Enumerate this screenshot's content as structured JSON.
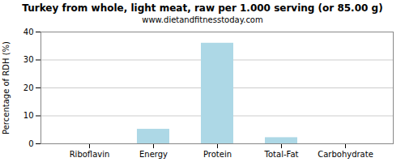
{
  "chart_data": {
    "type": "bar",
    "title": "Turkey from whole, light meat, raw per 1.000 serving (or 85.00 g)",
    "subtitle": "www.dietandfitnesstoday.com",
    "categories": [
      "Riboflavin",
      "Energy",
      "Protein",
      "Total-Fat",
      "Carbohydrate"
    ],
    "values": [
      0.0,
      5.2,
      36.0,
      2.2,
      0.0
    ],
    "color": "#add8e6",
    "ylabel": "Percentage of RDH (%)",
    "ylim": [
      0,
      40
    ],
    "yticks": [
      0,
      10,
      20,
      30,
      40
    ],
    "grid": true
  }
}
